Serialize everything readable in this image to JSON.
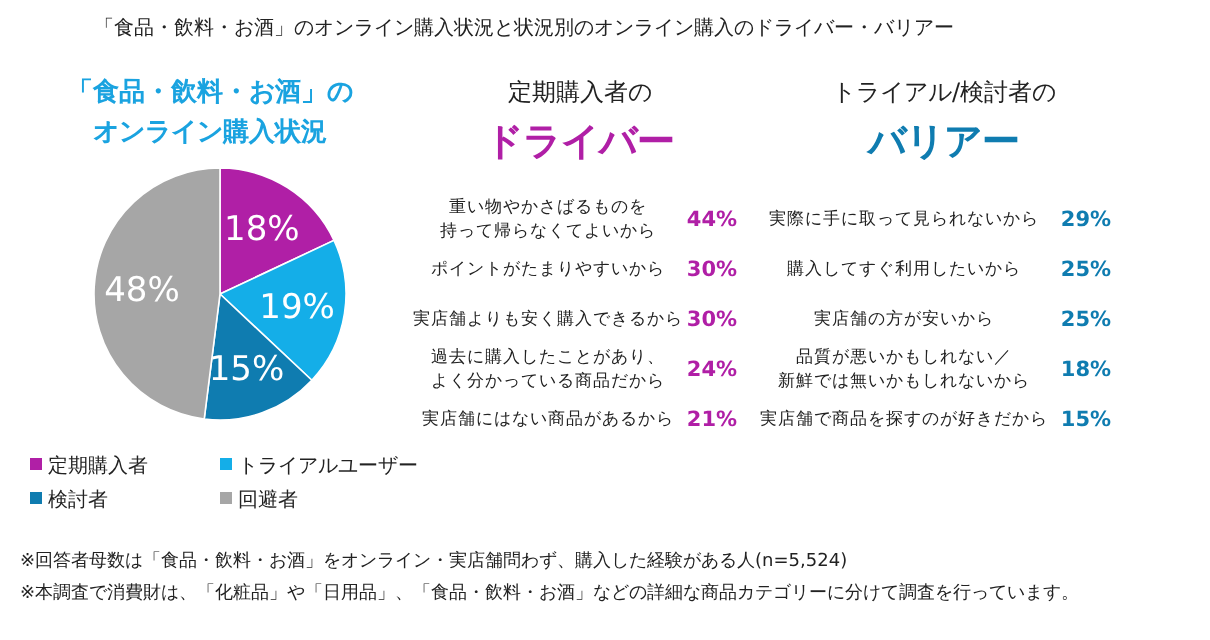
{
  "chart_data": [
    {
      "type": "pie",
      "title": "「食品・飲料・お酒」のオンライン購入状況と状況別のオンライン購入のドライバー・バリアー",
      "subtitle": "「食品・飲料・お酒」のオンライン購入状況",
      "categories": [
        "定期購入者",
        "トライアルユーザー",
        "検討者",
        "回避者"
      ],
      "values": [
        18,
        19,
        15,
        48
      ],
      "value_labels": [
        "18%",
        "19%",
        "15%",
        "48%"
      ],
      "colors": [
        "#b01fa6",
        "#14aee8",
        "#0f7cb0",
        "#a6a6a6"
      ],
      "legend": "bottom",
      "annotations": [
        "※回答者母数は「食品・飲料・お酒」をオンライン・実店舗問わず、購入した経験がある人(n=5,524)",
        "※本調査で消費財は、「化粧品」や「日用品」、「食品・飲料・お酒」などの詳細な商品カテゴリーに分けて調査を行っています。"
      ]
    },
    {
      "type": "other",
      "title": "定期購入者の",
      "subtitle": "ドライバー",
      "categories": [
        "重い物やかさばるものを持って帰らなくてよいから",
        "ポイントがたまりやすいから",
        "実店舗よりも安く購入できるから",
        "過去に購入したことがあり、よく分かっている商品だから",
        "実店舗にはない商品があるから"
      ],
      "values": [
        44,
        30,
        30,
        24,
        21
      ],
      "value_labels": [
        "44%",
        "30%",
        "30%",
        "24%",
        "21%"
      ],
      "color": "#b01fa6"
    },
    {
      "type": "other",
      "title": "トライアル/検討者の",
      "subtitle": "バリアー",
      "categories": [
        "実際に手に取って見られないから",
        "購入してすぐ利用したいから",
        "実店舗の方が安いから",
        "品質が悪いかもしれない／新鮮では無いかもしれないから",
        "実店舗で商品を探すのが好きだから"
      ],
      "values": [
        29,
        25,
        25,
        18,
        15
      ],
      "value_labels": [
        "29%",
        "25%",
        "25%",
        "18%",
        "15%"
      ],
      "color": "#0f7cb0"
    }
  ]
}
